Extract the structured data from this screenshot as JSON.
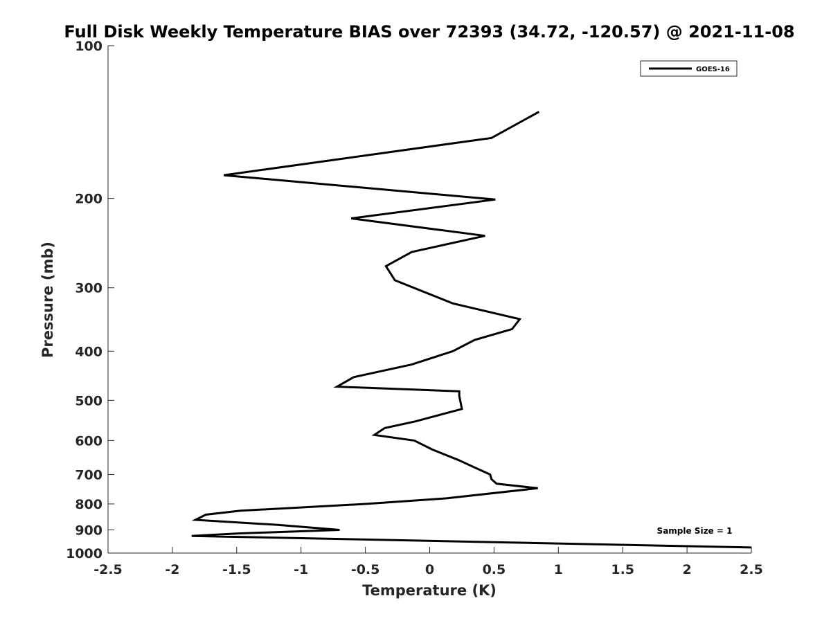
{
  "chart_data": {
    "type": "line",
    "title": "Full Disk Weekly Temperature BIAS over 72393 (34.72, -120.57) @ 2021-11-08",
    "xlabel": "Temperature (K)",
    "ylabel": "Pressure (mb)",
    "xlim": [
      -2.5,
      2.5
    ],
    "ylim": [
      100,
      1000
    ],
    "y_scale": "log",
    "y_reversed": true,
    "grid": false,
    "legend_position": "top-right",
    "x_ticks": [
      -2.5,
      -2,
      -1.5,
      -1,
      -0.5,
      0,
      0.5,
      1,
      1.5,
      2,
      2.5
    ],
    "x_tick_labels": [
      "-2.5",
      "-2",
      "-1.5",
      "-1",
      "-0.5",
      "0",
      "0.5",
      "1",
      "1.5",
      "2",
      "2.5"
    ],
    "y_ticks": [
      100,
      200,
      300,
      400,
      500,
      600,
      700,
      800,
      900,
      1000
    ],
    "y_tick_labels": [
      "100",
      "200",
      "300",
      "400",
      "500",
      "600",
      "700",
      "800",
      "900",
      "1000"
    ],
    "series": [
      {
        "name": "GOES-16",
        "color": "#000000",
        "points": [
          {
            "x": 0.85,
            "p": 135
          },
          {
            "x": 0.48,
            "p": 152
          },
          {
            "x": -1.6,
            "p": 180
          },
          {
            "x": 0.51,
            "p": 201
          },
          {
            "x": -0.61,
            "p": 219
          },
          {
            "x": 0.43,
            "p": 237
          },
          {
            "x": -0.14,
            "p": 255
          },
          {
            "x": -0.34,
            "p": 272
          },
          {
            "x": -0.27,
            "p": 290
          },
          {
            "x": 0.18,
            "p": 322
          },
          {
            "x": 0.7,
            "p": 346
          },
          {
            "x": 0.64,
            "p": 362
          },
          {
            "x": 0.35,
            "p": 380
          },
          {
            "x": 0.18,
            "p": 400
          },
          {
            "x": -0.14,
            "p": 425
          },
          {
            "x": -0.59,
            "p": 450
          },
          {
            "x": -0.72,
            "p": 470
          },
          {
            "x": 0.23,
            "p": 480
          },
          {
            "x": 0.23,
            "p": 490
          },
          {
            "x": 0.25,
            "p": 520
          },
          {
            "x": -0.11,
            "p": 550
          },
          {
            "x": -0.35,
            "p": 567
          },
          {
            "x": -0.43,
            "p": 585
          },
          {
            "x": -0.12,
            "p": 600
          },
          {
            "x": 0.02,
            "p": 625
          },
          {
            "x": 0.22,
            "p": 655
          },
          {
            "x": 0.36,
            "p": 680
          },
          {
            "x": 0.47,
            "p": 700
          },
          {
            "x": 0.48,
            "p": 715
          },
          {
            "x": 0.52,
            "p": 730
          },
          {
            "x": 0.84,
            "p": 745
          },
          {
            "x": 0.13,
            "p": 780
          },
          {
            "x": -0.5,
            "p": 800
          },
          {
            "x": -1.47,
            "p": 825
          },
          {
            "x": -1.74,
            "p": 840
          },
          {
            "x": -1.82,
            "p": 860
          },
          {
            "x": -1.18,
            "p": 880
          },
          {
            "x": -0.7,
            "p": 900
          },
          {
            "x": -1.5,
            "p": 915
          },
          {
            "x": -1.85,
            "p": 925
          },
          {
            "x": 2.5,
            "p": 975
          }
        ]
      }
    ],
    "annotations": [
      {
        "text": "Sample Size = 1",
        "position": "bottom-right"
      }
    ]
  }
}
